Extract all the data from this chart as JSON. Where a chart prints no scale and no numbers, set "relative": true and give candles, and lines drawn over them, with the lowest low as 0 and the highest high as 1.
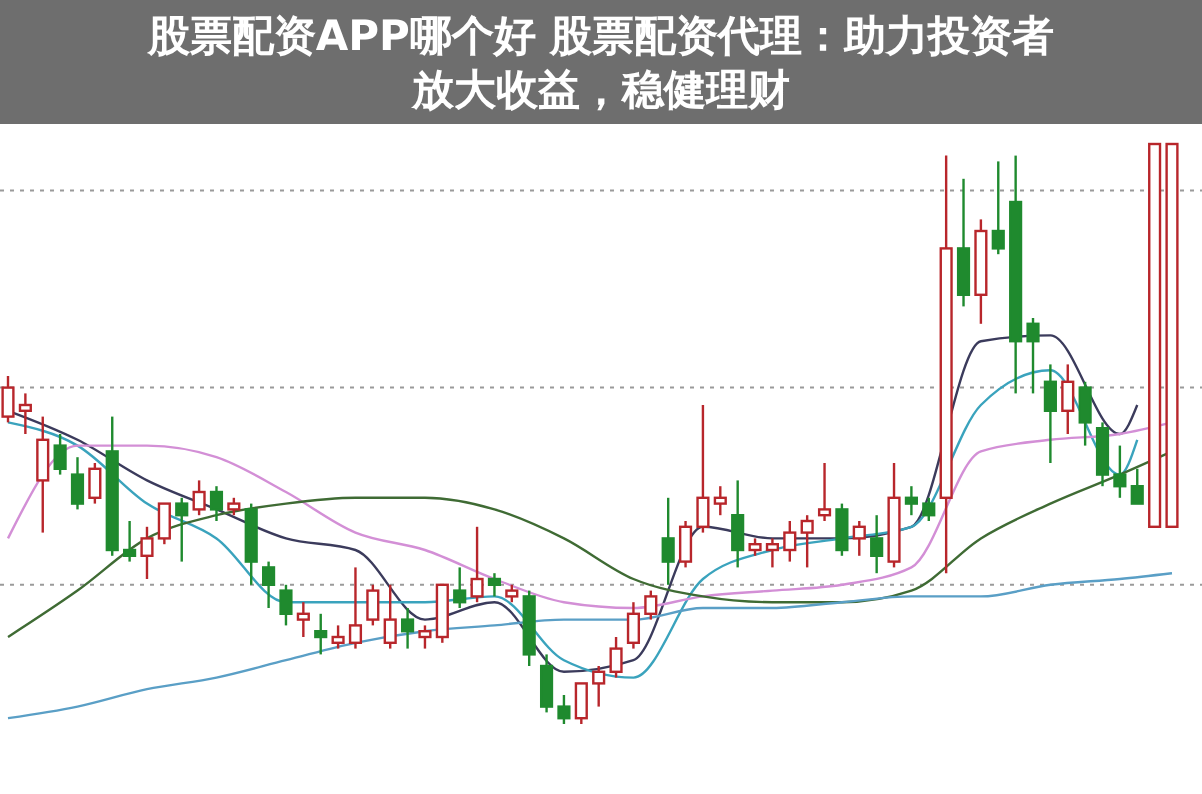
{
  "chart_data": {
    "type": "candlestick",
    "title": "股票配资APP哪个好 股票配资代理：助力投资者放大收益，稳健理财",
    "relative": true,
    "categories": [
      null,
      null,
      null,
      null,
      null,
      null,
      null,
      null,
      null,
      null,
      null,
      null,
      null,
      null,
      null,
      null,
      null,
      null,
      null,
      null,
      null,
      null,
      null,
      null,
      null,
      null,
      null,
      null,
      null,
      null,
      null,
      null,
      null,
      null,
      null,
      null,
      null,
      null,
      null,
      null,
      null,
      null,
      null,
      null,
      null,
      null,
      null,
      null,
      null,
      null,
      null,
      null,
      null,
      null,
      null,
      null,
      null,
      null,
      null,
      null,
      null,
      null,
      null,
      null,
      null,
      null,
      null,
      null
    ],
    "ohlc": [
      [
        0.53,
        0.6,
        0.52,
        0.58
      ],
      [
        0.54,
        0.57,
        0.5,
        0.55
      ],
      [
        0.42,
        0.53,
        0.33,
        0.49
      ],
      [
        0.48,
        0.5,
        0.43,
        0.44
      ],
      [
        0.43,
        0.46,
        0.37,
        0.38
      ],
      [
        0.39,
        0.45,
        0.38,
        0.44
      ],
      [
        0.47,
        0.53,
        0.29,
        0.3
      ],
      [
        0.3,
        0.35,
        0.28,
        0.29
      ],
      [
        0.29,
        0.34,
        0.25,
        0.32
      ],
      [
        0.32,
        0.38,
        0.31,
        0.38
      ],
      [
        0.38,
        0.39,
        0.28,
        0.36
      ],
      [
        0.37,
        0.42,
        0.36,
        0.4
      ],
      [
        0.4,
        0.41,
        0.35,
        0.37
      ],
      [
        0.37,
        0.39,
        0.36,
        0.38
      ],
      [
        0.37,
        0.38,
        0.24,
        0.28
      ],
      [
        0.27,
        0.28,
        0.2,
        0.24
      ],
      [
        0.23,
        0.24,
        0.17,
        0.19
      ],
      [
        0.18,
        0.21,
        0.15,
        0.19
      ],
      [
        0.16,
        0.19,
        0.12,
        0.15
      ],
      [
        0.14,
        0.17,
        0.13,
        0.15
      ],
      [
        0.14,
        0.27,
        0.13,
        0.17
      ],
      [
        0.18,
        0.24,
        0.17,
        0.23
      ],
      [
        0.14,
        0.24,
        0.13,
        0.18
      ],
      [
        0.18,
        0.2,
        0.13,
        0.16
      ],
      [
        0.15,
        0.17,
        0.13,
        0.16
      ],
      [
        0.15,
        0.24,
        0.14,
        0.24
      ],
      [
        0.23,
        0.27,
        0.2,
        0.21
      ],
      [
        0.22,
        0.34,
        0.21,
        0.25
      ],
      [
        0.25,
        0.26,
        0.22,
        0.24
      ],
      [
        0.22,
        0.24,
        0.21,
        0.23
      ],
      [
        0.22,
        0.23,
        0.1,
        0.12
      ],
      [
        0.1,
        0.12,
        0.02,
        0.03
      ],
      [
        0.03,
        0.05,
        0.0,
        0.01
      ],
      [
        0.01,
        0.07,
        0.0,
        0.07
      ],
      [
        0.07,
        0.1,
        0.03,
        0.09
      ],
      [
        0.09,
        0.15,
        0.08,
        0.13
      ],
      [
        0.14,
        0.21,
        0.13,
        0.19
      ],
      [
        0.19,
        0.23,
        0.18,
        0.22
      ],
      [
        0.32,
        0.39,
        0.24,
        0.28
      ],
      [
        0.28,
        0.35,
        0.27,
        0.34
      ],
      [
        0.34,
        0.55,
        0.33,
        0.39
      ],
      [
        0.38,
        0.41,
        0.36,
        0.39
      ],
      [
        0.36,
        0.42,
        0.27,
        0.3
      ],
      [
        0.3,
        0.32,
        0.29,
        0.31
      ],
      [
        0.3,
        0.32,
        0.27,
        0.31
      ],
      [
        0.3,
        0.35,
        0.28,
        0.33
      ],
      [
        0.33,
        0.36,
        0.27,
        0.35
      ],
      [
        0.36,
        0.45,
        0.35,
        0.37
      ],
      [
        0.37,
        0.38,
        0.29,
        0.3
      ],
      [
        0.32,
        0.35,
        0.29,
        0.34
      ],
      [
        0.32,
        0.36,
        0.26,
        0.29
      ],
      [
        0.28,
        0.45,
        0.27,
        0.39
      ],
      [
        0.39,
        0.41,
        0.36,
        0.38
      ],
      [
        0.38,
        0.39,
        0.35,
        0.36
      ],
      [
        0.39,
        0.98,
        0.26,
        0.82
      ],
      [
        0.82,
        0.94,
        0.72,
        0.74
      ],
      [
        0.74,
        0.87,
        0.69,
        0.85
      ],
      [
        0.85,
        0.97,
        0.81,
        0.82
      ],
      [
        0.9,
        0.98,
        0.57,
        0.66
      ],
      [
        0.69,
        0.7,
        0.57,
        0.66
      ],
      [
        0.59,
        0.62,
        0.45,
        0.54
      ],
      [
        0.54,
        0.62,
        0.5,
        0.59
      ],
      [
        0.58,
        0.59,
        0.48,
        0.52
      ],
      [
        0.51,
        0.52,
        0.41,
        0.43
      ],
      [
        0.43,
        0.48,
        0.39,
        0.41
      ],
      [
        0.41,
        0.44,
        0.38,
        0.38
      ],
      [
        0.34,
        1,
        0.34,
        1
      ],
      [
        0.34,
        1,
        0.34,
        1
      ]
    ],
    "colors": [
      "#b8262b",
      "#b8262b",
      "#b8262b",
      "#1f8a2e",
      "#1f8a2e",
      "#b8262b",
      "#1f8a2e",
      "#1f8a2e",
      "#b8262b",
      "#b8262b",
      "#1f8a2e",
      "#b8262b",
      "#1f8a2e",
      "#b8262b",
      "#1f8a2e",
      "#1f8a2e",
      "#1f8a2e",
      "#b8262b",
      "#1f8a2e",
      "#b8262b",
      "#b8262b",
      "#b8262b",
      "#b8262b",
      "#1f8a2e",
      "#b8262b",
      "#b8262b",
      "#1f8a2e",
      "#b8262b",
      "#1f8a2e",
      "#b8262b",
      "#1f8a2e",
      "#1f8a2e",
      "#1f8a2e",
      "#b8262b",
      "#b8262b",
      "#b8262b",
      "#b8262b",
      "#b8262b",
      "#1f8a2e",
      "#b8262b",
      "#b8262b",
      "#b8262b",
      "#1f8a2e",
      "#b8262b",
      "#b8262b",
      "#b8262b",
      "#b8262b",
      "#b8262b",
      "#1f8a2e",
      "#b8262b",
      "#1f8a2e",
      "#b8262b",
      "#1f8a2e",
      "#1f8a2e",
      "#b8262b",
      "#1f8a2e",
      "#b8262b",
      "#1f8a2e",
      "#1f8a2e",
      "#1f8a2e",
      "#1f8a2e",
      "#b8262b",
      "#1f8a2e",
      "#1f8a2e",
      "#1f8a2e",
      "#1f8a2e",
      "#b8262b",
      "#b8262b"
    ],
    "series": [
      {
        "type": "line",
        "color": "#3b3b5c",
        "values": [
          0.54,
          null,
          null,
          null,
          0.49,
          null,
          null,
          null,
          0.42,
          null,
          null,
          null,
          0.37,
          null,
          null,
          null,
          0.32,
          null,
          null,
          null,
          0.3,
          null,
          null,
          null,
          0.18,
          null,
          null,
          null,
          0.21,
          null,
          null,
          null,
          0.09,
          null,
          null,
          null,
          0.11,
          null,
          null,
          null,
          0.34,
          null,
          null,
          null,
          0.32,
          null,
          null,
          null,
          0.32,
          null,
          null,
          null,
          0.34,
          null,
          null,
          null,
          0.66,
          null,
          null,
          null,
          0.67,
          null,
          null,
          null,
          0.5,
          0.55,
          null,
          null
        ]
      },
      {
        "type": "line",
        "color": "#3aa3bd",
        "values": [
          0.52,
          null,
          null,
          null,
          0.48,
          null,
          null,
          null,
          0.38,
          null,
          null,
          null,
          0.32,
          null,
          null,
          null,
          0.21,
          null,
          null,
          null,
          0.21,
          null,
          null,
          null,
          0.21,
          null,
          null,
          null,
          0.22,
          null,
          null,
          null,
          0.11,
          null,
          null,
          null,
          0.08,
          null,
          null,
          null,
          0.25,
          null,
          null,
          null,
          0.3,
          null,
          null,
          null,
          0.32,
          null,
          null,
          null,
          0.34,
          null,
          null,
          null,
          0.55,
          null,
          null,
          null,
          0.61,
          null,
          null,
          null,
          0.43,
          0.49,
          null,
          null
        ]
      },
      {
        "type": "line",
        "color": "#d38fd6",
        "values": [
          0.32,
          null,
          null,
          null,
          0.48,
          null,
          null,
          null,
          0.48,
          null,
          null,
          null,
          0.46,
          null,
          null,
          null,
          0.4,
          null,
          null,
          null,
          0.33,
          null,
          null,
          null,
          0.3,
          null,
          null,
          null,
          0.25,
          null,
          null,
          null,
          0.21,
          null,
          null,
          null,
          0.2,
          null,
          null,
          null,
          0.22,
          null,
          null,
          null,
          0.23,
          null,
          null,
          null,
          0.24,
          null,
          null,
          null,
          0.27,
          null,
          null,
          null,
          0.47,
          null,
          null,
          null,
          0.49,
          null,
          null,
          null,
          0.5,
          null,
          null,
          0.52
        ]
      },
      {
        "type": "line",
        "color": "#3f6b34",
        "values": [
          0.15,
          null,
          null,
          null,
          0.23,
          null,
          null,
          null,
          0.32,
          null,
          null,
          null,
          0.36,
          null,
          null,
          null,
          0.38,
          null,
          null,
          null,
          0.39,
          null,
          null,
          null,
          0.39,
          null,
          null,
          null,
          0.37,
          null,
          null,
          null,
          0.32,
          null,
          null,
          null,
          0.25,
          null,
          null,
          null,
          0.22,
          null,
          null,
          null,
          0.21,
          null,
          null,
          null,
          0.21,
          null,
          null,
          null,
          0.23,
          null,
          null,
          null,
          0.32,
          null,
          null,
          null,
          0.38,
          null,
          null,
          null,
          0.43,
          null,
          null,
          0.47
        ]
      },
      {
        "type": "line",
        "color": "#5a9fc6",
        "values": [
          0.01,
          null,
          null,
          null,
          0.03,
          null,
          null,
          null,
          0.06,
          null,
          null,
          null,
          0.08,
          null,
          null,
          null,
          0.11,
          null,
          null,
          null,
          0.14,
          null,
          null,
          null,
          0.16,
          null,
          null,
          null,
          0.17,
          null,
          null,
          null,
          0.18,
          null,
          null,
          null,
          0.18,
          null,
          null,
          null,
          0.2,
          null,
          null,
          null,
          0.2,
          null,
          null,
          null,
          0.21,
          null,
          null,
          null,
          0.22,
          null,
          null,
          null,
          0.22,
          null,
          null,
          null,
          0.24,
          null,
          null,
          null,
          0.25,
          null,
          null,
          0.26
        ]
      }
    ],
    "ref_lines": [
      {
        "axis": "y",
        "value": 0.92,
        "color": "#9a9a9a",
        "line_style": "dotted"
      },
      {
        "axis": "y",
        "value": 0.58,
        "color": "#9a9a9a",
        "line_style": "dotted"
      },
      {
        "axis": "y",
        "value": 0.24,
        "color": "#9a9a9a",
        "line_style": "dotted"
      }
    ]
  }
}
